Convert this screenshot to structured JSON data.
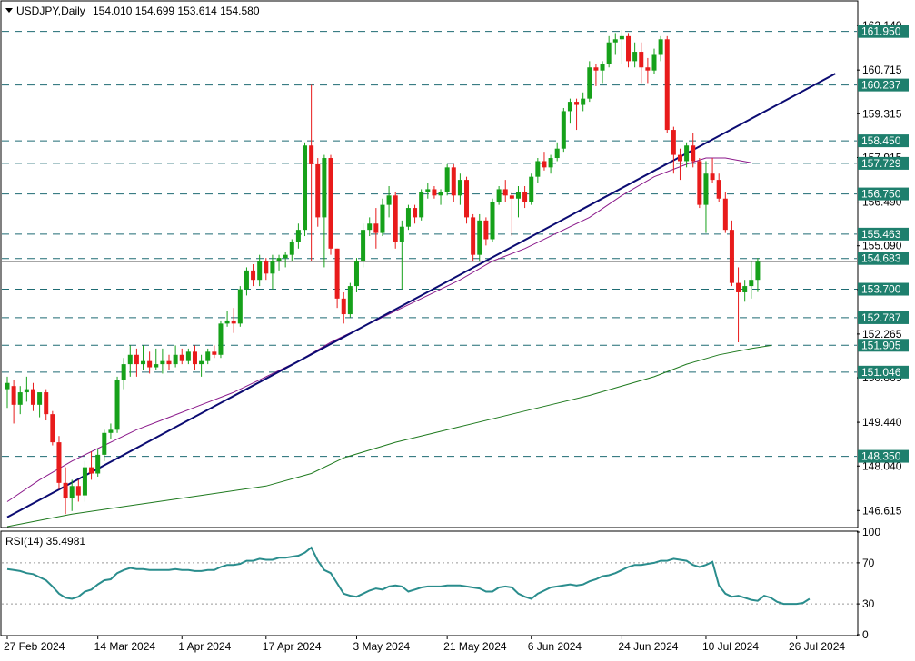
{
  "header": {
    "symbol": "USDJPY,Daily",
    "ohlc": "154.010 154.699 153.614 154.580",
    "rsi_label": "RSI(14) 35.4981"
  },
  "colors": {
    "bull": "#16a11a",
    "bear": "#e81b1b",
    "hline": "#1e6b73",
    "trend": "#0b0b72",
    "ma50": "#8b1a8b",
    "ma200": "#1f7a1f",
    "rsi": "#2a8d8d",
    "label_bg": "#1e7f6d"
  },
  "chart_data": [
    {
      "type": "candlestick",
      "title": "USDJPY,Daily",
      "y_ticks": [
        "162.140",
        "160.715",
        "159.315",
        "157.915",
        "156.490",
        "155.090",
        "153.690",
        "152.265",
        "150.865",
        "149.440",
        "148.040",
        "146.615"
      ],
      "x_tick_labels": [
        "27 Feb 2024",
        "14 Mar 2024",
        "1 Apr 2024",
        "17 Apr 2024",
        "3 May 2024",
        "21 May 2024",
        "6 Jun 2024",
        "24 Jun 2024",
        "10 Jul 2024",
        "26 Jul 2024"
      ],
      "ylim": [
        146.1,
        162.9
      ],
      "horizontal_levels": [
        "161.950",
        "160.237",
        "158.450",
        "157.729",
        "156.750",
        "155.463",
        "154.683",
        "153.700",
        "152.787",
        "151.905",
        "151.046",
        "148.350"
      ],
      "current_price_level": "154.580",
      "candles": [
        {
          "o": 150.5,
          "h": 150.9,
          "l": 149.9,
          "c": 150.7
        },
        {
          "o": 150.6,
          "h": 150.8,
          "l": 149.4,
          "c": 150.0
        },
        {
          "o": 150.0,
          "h": 150.6,
          "l": 149.7,
          "c": 150.4
        },
        {
          "o": 150.4,
          "h": 150.9,
          "l": 150.1,
          "c": 150.5
        },
        {
          "o": 150.5,
          "h": 150.7,
          "l": 149.8,
          "c": 150.0
        },
        {
          "o": 150.0,
          "h": 150.3,
          "l": 149.6,
          "c": 150.4
        },
        {
          "o": 150.4,
          "h": 150.5,
          "l": 149.5,
          "c": 149.7
        },
        {
          "o": 149.7,
          "h": 149.8,
          "l": 148.7,
          "c": 148.8
        },
        {
          "o": 148.8,
          "h": 149.0,
          "l": 147.3,
          "c": 147.5
        },
        {
          "o": 147.5,
          "h": 148.0,
          "l": 146.5,
          "c": 147.0
        },
        {
          "o": 147.0,
          "h": 147.6,
          "l": 146.6,
          "c": 147.4
        },
        {
          "o": 147.4,
          "h": 147.6,
          "l": 146.9,
          "c": 147.1
        },
        {
          "o": 147.1,
          "h": 148.2,
          "l": 146.9,
          "c": 148.0
        },
        {
          "o": 148.0,
          "h": 148.5,
          "l": 147.6,
          "c": 147.8
        },
        {
          "o": 147.8,
          "h": 148.6,
          "l": 147.7,
          "c": 148.4
        },
        {
          "o": 148.4,
          "h": 149.2,
          "l": 148.2,
          "c": 149.1
        },
        {
          "o": 149.1,
          "h": 149.4,
          "l": 148.9,
          "c": 149.2
        },
        {
          "o": 149.2,
          "h": 150.9,
          "l": 149.1,
          "c": 150.8
        },
        {
          "o": 150.8,
          "h": 151.5,
          "l": 150.5,
          "c": 151.3
        },
        {
          "o": 151.3,
          "h": 151.9,
          "l": 150.9,
          "c": 151.6
        },
        {
          "o": 151.6,
          "h": 151.8,
          "l": 150.9,
          "c": 151.3
        },
        {
          "o": 151.3,
          "h": 151.9,
          "l": 151.1,
          "c": 151.4
        },
        {
          "o": 151.4,
          "h": 151.7,
          "l": 151.0,
          "c": 151.2
        },
        {
          "o": 151.2,
          "h": 151.8,
          "l": 151.1,
          "c": 151.3
        },
        {
          "o": 151.3,
          "h": 151.8,
          "l": 151.0,
          "c": 151.4
        },
        {
          "o": 151.4,
          "h": 151.6,
          "l": 151.1,
          "c": 151.3
        },
        {
          "o": 151.3,
          "h": 151.9,
          "l": 151.2,
          "c": 151.6
        },
        {
          "o": 151.6,
          "h": 151.8,
          "l": 151.3,
          "c": 151.4
        },
        {
          "o": 151.4,
          "h": 151.8,
          "l": 151.3,
          "c": 151.7
        },
        {
          "o": 151.7,
          "h": 151.9,
          "l": 151.1,
          "c": 151.3
        },
        {
          "o": 151.3,
          "h": 151.6,
          "l": 150.9,
          "c": 151.4
        },
        {
          "o": 151.4,
          "h": 151.8,
          "l": 151.3,
          "c": 151.7
        },
        {
          "o": 151.7,
          "h": 151.9,
          "l": 151.5,
          "c": 151.6
        },
        {
          "o": 151.6,
          "h": 152.7,
          "l": 151.5,
          "c": 152.6
        },
        {
          "o": 152.6,
          "h": 153.0,
          "l": 152.5,
          "c": 152.7
        },
        {
          "o": 152.7,
          "h": 153.1,
          "l": 152.3,
          "c": 152.6
        },
        {
          "o": 152.6,
          "h": 153.8,
          "l": 152.5,
          "c": 153.7
        },
        {
          "o": 153.7,
          "h": 154.4,
          "l": 153.5,
          "c": 154.3
        },
        {
          "o": 154.3,
          "h": 154.5,
          "l": 153.8,
          "c": 154.0
        },
        {
          "o": 154.0,
          "h": 154.8,
          "l": 153.8,
          "c": 154.6
        },
        {
          "o": 154.6,
          "h": 154.7,
          "l": 154.0,
          "c": 154.2
        },
        {
          "o": 154.2,
          "h": 154.8,
          "l": 153.7,
          "c": 154.6
        },
        {
          "o": 154.6,
          "h": 154.8,
          "l": 154.3,
          "c": 154.7
        },
        {
          "o": 154.7,
          "h": 154.9,
          "l": 154.4,
          "c": 154.8
        },
        {
          "o": 154.8,
          "h": 155.3,
          "l": 154.6,
          "c": 155.2
        },
        {
          "o": 155.2,
          "h": 155.8,
          "l": 155.0,
          "c": 155.6
        },
        {
          "o": 155.6,
          "h": 158.4,
          "l": 155.4,
          "c": 158.3
        },
        {
          "o": 158.3,
          "h": 160.24,
          "l": 154.6,
          "c": 157.7
        },
        {
          "o": 157.7,
          "h": 157.9,
          "l": 155.7,
          "c": 156.0
        },
        {
          "o": 156.0,
          "h": 158.0,
          "l": 154.4,
          "c": 157.9
        },
        {
          "o": 157.9,
          "h": 158.0,
          "l": 154.8,
          "c": 155.0
        },
        {
          "o": 155.0,
          "h": 155.0,
          "l": 153.1,
          "c": 153.4
        },
        {
          "o": 153.4,
          "h": 153.6,
          "l": 152.6,
          "c": 152.9
        },
        {
          "o": 152.9,
          "h": 153.9,
          "l": 152.8,
          "c": 153.8
        },
        {
          "o": 153.8,
          "h": 154.7,
          "l": 153.6,
          "c": 154.6
        },
        {
          "o": 154.6,
          "h": 155.8,
          "l": 154.4,
          "c": 155.6
        },
        {
          "o": 155.6,
          "h": 156.0,
          "l": 155.4,
          "c": 155.8
        },
        {
          "o": 155.8,
          "h": 156.3,
          "l": 155.0,
          "c": 155.5
        },
        {
          "o": 155.5,
          "h": 156.6,
          "l": 155.4,
          "c": 156.4
        },
        {
          "o": 156.4,
          "h": 157.0,
          "l": 156.0,
          "c": 156.7
        },
        {
          "o": 156.7,
          "h": 156.8,
          "l": 155.0,
          "c": 155.2
        },
        {
          "o": 155.2,
          "h": 155.9,
          "l": 153.7,
          "c": 155.7
        },
        {
          "o": 155.7,
          "h": 156.4,
          "l": 155.6,
          "c": 156.3
        },
        {
          "o": 156.3,
          "h": 156.4,
          "l": 155.8,
          "c": 156.0
        },
        {
          "o": 156.0,
          "h": 156.9,
          "l": 155.9,
          "c": 156.8
        },
        {
          "o": 156.8,
          "h": 157.1,
          "l": 156.6,
          "c": 156.9
        },
        {
          "o": 156.9,
          "h": 157.0,
          "l": 156.6,
          "c": 156.7
        },
        {
          "o": 156.7,
          "h": 156.9,
          "l": 156.4,
          "c": 156.8
        },
        {
          "o": 156.8,
          "h": 157.7,
          "l": 156.7,
          "c": 157.6
        },
        {
          "o": 157.6,
          "h": 157.7,
          "l": 156.5,
          "c": 156.7
        },
        {
          "o": 156.7,
          "h": 157.4,
          "l": 156.4,
          "c": 157.2
        },
        {
          "o": 157.2,
          "h": 157.3,
          "l": 155.8,
          "c": 156.0
        },
        {
          "o": 156.0,
          "h": 156.1,
          "l": 154.6,
          "c": 154.8
        },
        {
          "o": 154.8,
          "h": 156.1,
          "l": 154.6,
          "c": 155.9
        },
        {
          "o": 155.9,
          "h": 156.0,
          "l": 155.1,
          "c": 155.3
        },
        {
          "o": 155.3,
          "h": 156.6,
          "l": 155.2,
          "c": 156.5
        },
        {
          "o": 156.5,
          "h": 157.0,
          "l": 156.4,
          "c": 156.9
        },
        {
          "o": 156.9,
          "h": 157.2,
          "l": 156.5,
          "c": 156.7
        },
        {
          "o": 156.7,
          "h": 156.8,
          "l": 155.4,
          "c": 156.6
        },
        {
          "o": 156.6,
          "h": 157.0,
          "l": 156.0,
          "c": 156.8
        },
        {
          "o": 156.8,
          "h": 157.0,
          "l": 156.3,
          "c": 156.5
        },
        {
          "o": 156.5,
          "h": 157.4,
          "l": 156.4,
          "c": 157.3
        },
        {
          "o": 157.3,
          "h": 157.9,
          "l": 157.1,
          "c": 157.8
        },
        {
          "o": 157.8,
          "h": 158.1,
          "l": 157.5,
          "c": 157.6
        },
        {
          "o": 157.6,
          "h": 158.0,
          "l": 157.4,
          "c": 157.9
        },
        {
          "o": 157.9,
          "h": 158.4,
          "l": 157.8,
          "c": 158.2
        },
        {
          "o": 158.2,
          "h": 159.5,
          "l": 158.1,
          "c": 159.4
        },
        {
          "o": 159.4,
          "h": 159.8,
          "l": 159.0,
          "c": 159.7
        },
        {
          "o": 159.7,
          "h": 159.8,
          "l": 158.8,
          "c": 159.6
        },
        {
          "o": 159.6,
          "h": 160.0,
          "l": 159.4,
          "c": 159.8
        },
        {
          "o": 159.8,
          "h": 161.0,
          "l": 159.7,
          "c": 160.8
        },
        {
          "o": 160.8,
          "h": 160.9,
          "l": 160.2,
          "c": 160.7
        },
        {
          "o": 160.7,
          "h": 161.0,
          "l": 160.3,
          "c": 160.9
        },
        {
          "o": 160.9,
          "h": 161.8,
          "l": 160.8,
          "c": 161.6
        },
        {
          "o": 161.6,
          "h": 161.9,
          "l": 161.2,
          "c": 161.7
        },
        {
          "o": 161.7,
          "h": 162.0,
          "l": 160.9,
          "c": 161.8
        },
        {
          "o": 161.8,
          "h": 161.9,
          "l": 160.8,
          "c": 161.0
        },
        {
          "o": 161.0,
          "h": 161.6,
          "l": 160.8,
          "c": 161.3
        },
        {
          "o": 161.3,
          "h": 161.6,
          "l": 160.3,
          "c": 160.8
        },
        {
          "o": 160.8,
          "h": 161.1,
          "l": 160.3,
          "c": 160.7
        },
        {
          "o": 160.7,
          "h": 161.4,
          "l": 160.6,
          "c": 161.2
        },
        {
          "o": 161.2,
          "h": 161.8,
          "l": 161.0,
          "c": 161.7
        },
        {
          "o": 161.7,
          "h": 161.8,
          "l": 158.7,
          "c": 158.8
        },
        {
          "o": 158.8,
          "h": 158.9,
          "l": 157.4,
          "c": 158.0
        },
        {
          "o": 158.0,
          "h": 158.2,
          "l": 157.2,
          "c": 157.8
        },
        {
          "o": 157.8,
          "h": 158.4,
          "l": 157.6,
          "c": 158.3
        },
        {
          "o": 158.3,
          "h": 158.7,
          "l": 157.6,
          "c": 157.8
        },
        {
          "o": 157.8,
          "h": 157.9,
          "l": 156.3,
          "c": 156.4
        },
        {
          "o": 156.4,
          "h": 157.8,
          "l": 155.5,
          "c": 157.4
        },
        {
          "o": 157.4,
          "h": 157.9,
          "l": 157.1,
          "c": 157.2
        },
        {
          "o": 157.2,
          "h": 157.4,
          "l": 156.5,
          "c": 156.6
        },
        {
          "o": 156.6,
          "h": 156.8,
          "l": 155.5,
          "c": 155.6
        },
        {
          "o": 155.6,
          "h": 155.9,
          "l": 153.8,
          "c": 153.9
        },
        {
          "o": 153.9,
          "h": 154.4,
          "l": 152.0,
          "c": 153.6
        },
        {
          "o": 153.6,
          "h": 154.0,
          "l": 153.3,
          "c": 153.8
        },
        {
          "o": 153.8,
          "h": 154.6,
          "l": 153.4,
          "c": 154.0
        },
        {
          "o": 154.0,
          "h": 154.7,
          "l": 153.61,
          "c": 154.58
        }
      ],
      "overlays": {
        "trendline": {
          "from": [
            0,
            146.4
          ],
          "to": [
            128,
            160.6
          ]
        },
        "ma_purple": [
          [
            0,
            146.9
          ],
          [
            5,
            147.6
          ],
          [
            10,
            148.2
          ],
          [
            15,
            148.7
          ],
          [
            20,
            149.2
          ],
          [
            25,
            149.6
          ],
          [
            30,
            150.0
          ],
          [
            35,
            150.4
          ],
          [
            40,
            150.9
          ],
          [
            45,
            151.4
          ],
          [
            50,
            152.0
          ],
          [
            55,
            152.5
          ],
          [
            60,
            153.0
          ],
          [
            65,
            153.5
          ],
          [
            70,
            154.0
          ],
          [
            75,
            154.6
          ],
          [
            80,
            155.0
          ],
          [
            85,
            155.5
          ],
          [
            90,
            156.0
          ],
          [
            95,
            156.7
          ],
          [
            100,
            157.3
          ],
          [
            105,
            157.7
          ],
          [
            108,
            157.9
          ],
          [
            111,
            157.9
          ],
          [
            115,
            157.75
          ]
        ],
        "ma_green": [
          [
            0,
            146.1
          ],
          [
            10,
            146.5
          ],
          [
            20,
            146.8
          ],
          [
            30,
            147.1
          ],
          [
            40,
            147.4
          ],
          [
            47,
            147.8
          ],
          [
            52,
            148.3
          ],
          [
            60,
            148.8
          ],
          [
            70,
            149.3
          ],
          [
            80,
            149.8
          ],
          [
            90,
            150.3
          ],
          [
            100,
            150.9
          ],
          [
            105,
            151.3
          ],
          [
            110,
            151.6
          ],
          [
            115,
            151.8
          ],
          [
            118,
            151.9
          ]
        ]
      }
    },
    {
      "type": "line",
      "title": "RSI(14) 35.4981",
      "y_ticks": [
        "100",
        "70",
        "30",
        "0"
      ],
      "ylim": [
        0,
        100
      ],
      "reference_levels": [
        70,
        30
      ],
      "values": [
        64,
        63,
        62,
        60,
        59,
        56,
        53,
        47,
        40,
        36,
        35,
        37,
        42,
        44,
        49,
        53,
        54,
        60,
        63,
        65,
        64,
        64,
        63,
        63,
        63,
        63,
        64,
        63,
        63,
        62,
        62,
        63,
        63,
        66,
        68,
        68,
        69,
        72,
        72,
        74,
        73,
        73,
        75,
        75,
        76,
        77,
        80,
        85,
        72,
        63,
        60,
        50,
        40,
        38,
        37,
        40,
        43,
        45,
        44,
        47,
        48,
        47,
        42,
        44,
        46,
        47,
        47,
        47,
        48,
        48,
        48,
        47,
        46,
        45,
        42,
        42,
        46,
        47,
        46,
        40,
        37,
        35,
        40,
        43,
        46,
        47,
        48,
        49,
        48,
        49,
        52,
        54,
        57,
        58,
        60,
        63,
        66,
        68,
        68,
        69,
        70,
        72,
        72,
        74,
        73,
        72,
        68,
        66,
        68,
        71,
        48,
        40,
        37,
        38,
        36,
        34,
        33,
        38,
        36,
        32,
        30,
        30,
        30,
        31,
        35
      ]
    }
  ]
}
